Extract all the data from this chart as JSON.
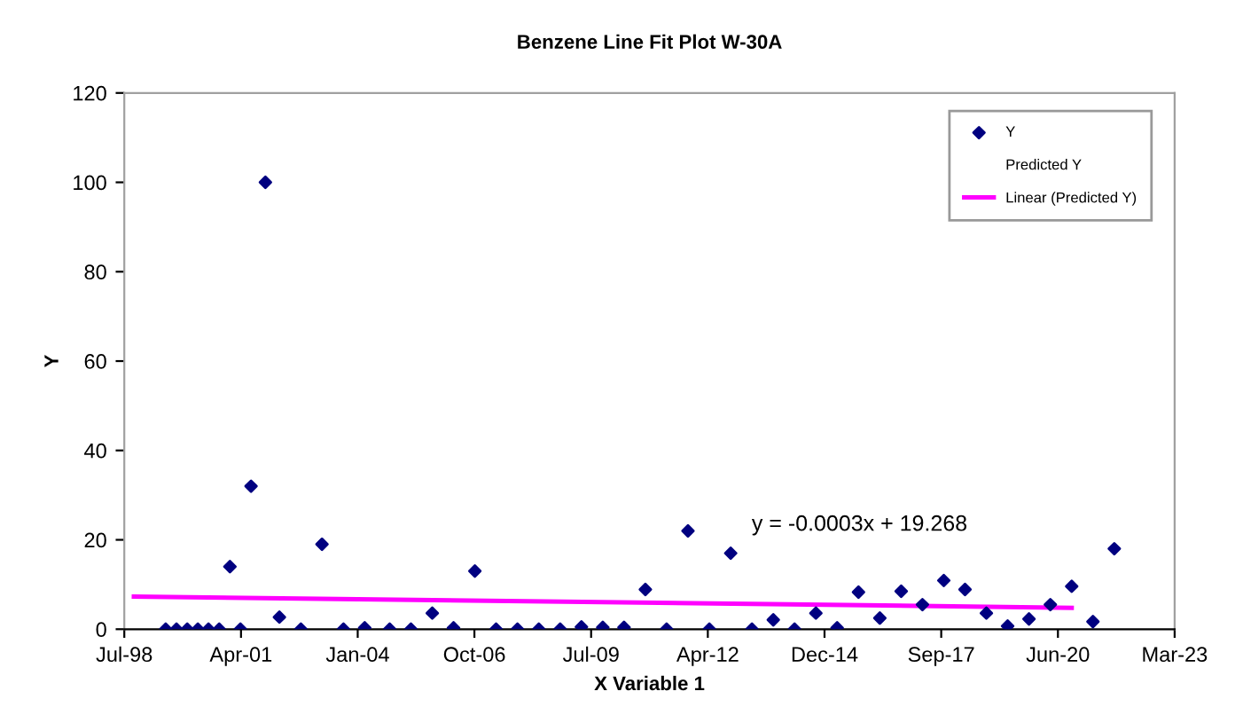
{
  "chart_data": {
    "type": "scatter",
    "title": "Benzene Line Fit Plot W-30A",
    "xlabel": "X Variable 1",
    "ylabel": "Y",
    "xlim": [
      "1998-07-25",
      "2023-03-16"
    ],
    "xticks": [
      {
        "value": "1998-07-25",
        "label": "Jul-98"
      },
      {
        "value": "2001-04-20",
        "label": "Apr-01"
      },
      {
        "value": "2004-01-15",
        "label": "Jan-04"
      },
      {
        "value": "2006-10-11",
        "label": "Oct-06"
      },
      {
        "value": "2009-07-07",
        "label": "Jul-09"
      },
      {
        "value": "2012-04-02",
        "label": "Apr-12"
      },
      {
        "value": "2014-12-28",
        "label": "Dec-14"
      },
      {
        "value": "2017-09-23",
        "label": "Sep-17"
      },
      {
        "value": "2020-06-19",
        "label": "Jun-20"
      },
      {
        "value": "2023-03-16",
        "label": "Mar-23"
      }
    ],
    "ylim": [
      0,
      120
    ],
    "yticks": [
      0,
      20,
      40,
      60,
      80,
      100,
      120
    ],
    "grid": false,
    "legend": "top right",
    "annotations": [
      "y = -0.0003x + 19.268"
    ],
    "series": [
      {
        "name": "Y",
        "marker": "diamond",
        "color": "#000080",
        "x": [
          "1999-07",
          "1999-10",
          "2000-01",
          "2000-04",
          "2000-07",
          "2000-10",
          "2001-01",
          "2001-04",
          "2001-07",
          "2001-11",
          "2002-03",
          "2002-09",
          "2003-03",
          "2003-09",
          "2004-03",
          "2004-10",
          "2005-04",
          "2005-10",
          "2006-04",
          "2006-10",
          "2007-04",
          "2007-10",
          "2008-04",
          "2008-10",
          "2009-04",
          "2009-10",
          "2010-04",
          "2010-10",
          "2011-04",
          "2011-10",
          "2012-04",
          "2012-10",
          "2013-04",
          "2013-10",
          "2014-04",
          "2014-10",
          "2015-04",
          "2015-10",
          "2016-04",
          "2016-10",
          "2017-04",
          "2017-10",
          "2018-04",
          "2018-10",
          "2019-04",
          "2019-10",
          "2020-04",
          "2020-10",
          "2021-04",
          "2021-10"
        ],
        "values": [
          0,
          0,
          0,
          0,
          0,
          0,
          14,
          0,
          32,
          100,
          2.7,
          0,
          19,
          0,
          0.3,
          0,
          0,
          3.6,
          0.3,
          13,
          0,
          0,
          0,
          0,
          0.5,
          0.4,
          0.4,
          8.9,
          0,
          22,
          0,
          17,
          0,
          2.1,
          0,
          3.6,
          0.3,
          8.3,
          2.5,
          8.5,
          5.5,
          10.9,
          8.9,
          3.6,
          0.7,
          2.3,
          5.5,
          9.6,
          1.7,
          18
        ]
      },
      {
        "name": "Predicted Y",
        "marker": "none"
      },
      {
        "name": "Linear (Predicted Y)",
        "type": "line",
        "marker": "none",
        "line_style": "solid",
        "color": "#ff00ff",
        "x": [
          "1998-10",
          "2020-10"
        ],
        "values": [
          7.3,
          4.8
        ]
      }
    ]
  }
}
